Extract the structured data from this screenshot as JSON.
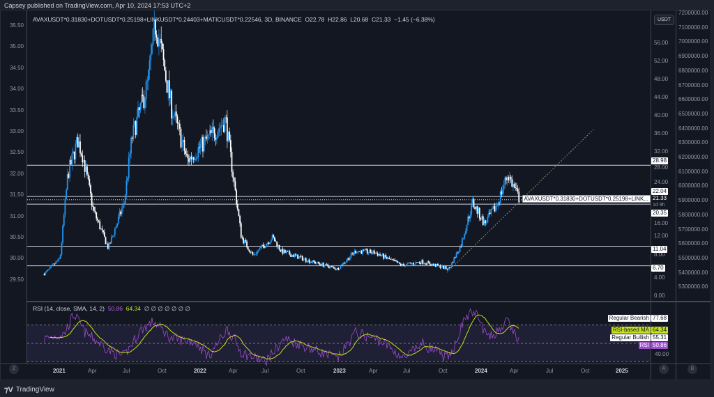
{
  "published": "Capsey published on TradingView.com, Apr 10, 2024 17:53 UTC+2",
  "legend": {
    "symbol": "AVAXUSDT*0.31830+DOTUSDT*0.25198+LINKUSDT*0.24403+MATICUSDT*0.22546, 3D, BINANCE",
    "open": "O22.78",
    "high": "H22.86",
    "low": "L20.68",
    "close": "C21.33",
    "change": "−1.45 (−6.38%)"
  },
  "rsi_legend": {
    "label": "RSI (14, close, SMA, 14, 2)",
    "rsi": "50.86",
    "ma": "64.34",
    "extras": "∅ ∅ ∅ ∅ ∅ ∅ ∅"
  },
  "currency": "USDT",
  "left_axis": [
    "35.50",
    "35.00",
    "34.50",
    "34.00",
    "33.50",
    "33.00",
    "32.50",
    "32.00",
    "31.50",
    "31.00",
    "30.50",
    "30.00",
    "29.50"
  ],
  "price_axis": [
    "56.00",
    "52.00",
    "48.00",
    "44.00",
    "40.00",
    "36.00",
    "32.00",
    "28.00",
    "24.00",
    "16.00",
    "12.00",
    "8.00",
    "4.00",
    "0.00"
  ],
  "far_axis": [
    "7200000.00",
    "7100000.00",
    "7000000.00",
    "6900000.00",
    "6800000.00",
    "6700000.00",
    "6600000.00",
    "6500000.00",
    "6400000.00",
    "6300000.00",
    "6200000.00",
    "6100000.00",
    "6000000.00",
    "5900000.00",
    "5800000.00",
    "5700000.00",
    "5600000.00",
    "5500000.00",
    "5400000.00",
    "5300000.00"
  ],
  "levels": [
    "28.98",
    "22.04",
    "20.35",
    "11.04",
    "6.70"
  ],
  "current": {
    "price": "21.33",
    "countdown": "1d 9h",
    "label": "AVAXUSDT*0.31830+DOTUSDT*0.25198+LINK..."
  },
  "rsi_tags": {
    "bearish_label": "Regular Bearish",
    "bearish": "77.68",
    "ma_label": "RSI-based MA",
    "ma": "64.34",
    "bullish_label": "Regular Bullish",
    "bullish": "55.31",
    "rsi_label": "RSI",
    "rsi": "50.86",
    "axis": "40.00"
  },
  "time_axis": [
    "2021",
    "Apr",
    "Jul",
    "Oct",
    "2022",
    "Apr",
    "Jul",
    "Oct",
    "2023",
    "Apr",
    "Jul",
    "Oct",
    "2024",
    "Apr",
    "Jul",
    "Oct",
    "2025"
  ],
  "axis_buttons": [
    "Z",
    "A",
    "B"
  ],
  "brand": "TradingView",
  "colors": {
    "up": "#2196f3",
    "down": "#ffffff",
    "rsi": "#9c4dcc",
    "rsi_ma": "#c6e01e",
    "bg": "#131722"
  },
  "chart_data": {
    "type": "candlestick",
    "interval": "3D",
    "y_unit": "USDT",
    "price_keyframes": [
      [
        "2020-11-25",
        4.9
      ],
      [
        "2021-01-05",
        8.3
      ],
      [
        "2021-01-25",
        27
      ],
      [
        "2021-02-20",
        34.5
      ],
      [
        "2021-03-05",
        31
      ],
      [
        "2021-04-01",
        19
      ],
      [
        "2021-05-10",
        10.6
      ],
      [
        "2021-06-20",
        20.7
      ],
      [
        "2021-07-10",
        35
      ],
      [
        "2021-08-20",
        47
      ],
      [
        "2021-09-10",
        60.8
      ],
      [
        "2021-10-20",
        42
      ],
      [
        "2021-12-01",
        30
      ],
      [
        "2022-03-10",
        39
      ],
      [
        "2022-04-01",
        25
      ],
      [
        "2022-04-20",
        13
      ],
      [
        "2022-05-20",
        9
      ],
      [
        "2022-07-10",
        13
      ],
      [
        "2022-08-01",
        9.9
      ],
      [
        "2022-10-20",
        7.6
      ],
      [
        "2022-12-25",
        6
      ],
      [
        "2023-02-10",
        10
      ],
      [
        "2023-04-01",
        9.6
      ],
      [
        "2023-06-10",
        6.8
      ],
      [
        "2023-08-01",
        7.6
      ],
      [
        "2023-10-10",
        6
      ],
      [
        "2023-11-10",
        11.4
      ],
      [
        "2023-12-10",
        20.7
      ],
      [
        "2024-01-10",
        16
      ],
      [
        "2024-02-10",
        20
      ],
      [
        "2024-03-10",
        27
      ],
      [
        "2024-04-10",
        21.33
      ]
    ],
    "levels": [
      28.98,
      22.04,
      20.35,
      11.04,
      6.7
    ],
    "rsi_keyframes": [
      [
        "2020-11-25",
        55
      ],
      [
        "2021-01-15",
        60
      ],
      [
        "2021-02-10",
        82
      ],
      [
        "2021-03-10",
        62
      ],
      [
        "2021-05-20",
        40
      ],
      [
        "2021-06-20",
        36
      ],
      [
        "2021-08-01",
        64
      ],
      [
        "2021-09-05",
        74
      ],
      [
        "2021-10-20",
        55
      ],
      [
        "2021-12-20",
        52
      ],
      [
        "2022-01-25",
        36
      ],
      [
        "2022-03-15",
        66
      ],
      [
        "2022-04-20",
        40
      ],
      [
        "2022-06-20",
        30
      ],
      [
        "2022-08-10",
        55
      ],
      [
        "2022-10-20",
        44
      ],
      [
        "2022-12-25",
        33
      ],
      [
        "2023-02-10",
        62
      ],
      [
        "2023-04-20",
        52
      ],
      [
        "2023-06-15",
        33
      ],
      [
        "2023-08-01",
        50
      ],
      [
        "2023-10-10",
        33
      ],
      [
        "2023-11-20",
        78
      ],
      [
        "2023-12-15",
        85
      ],
      [
        "2024-01-20",
        55
      ],
      [
        "2024-03-10",
        74
      ],
      [
        "2024-04-10",
        50.86
      ]
    ]
  }
}
